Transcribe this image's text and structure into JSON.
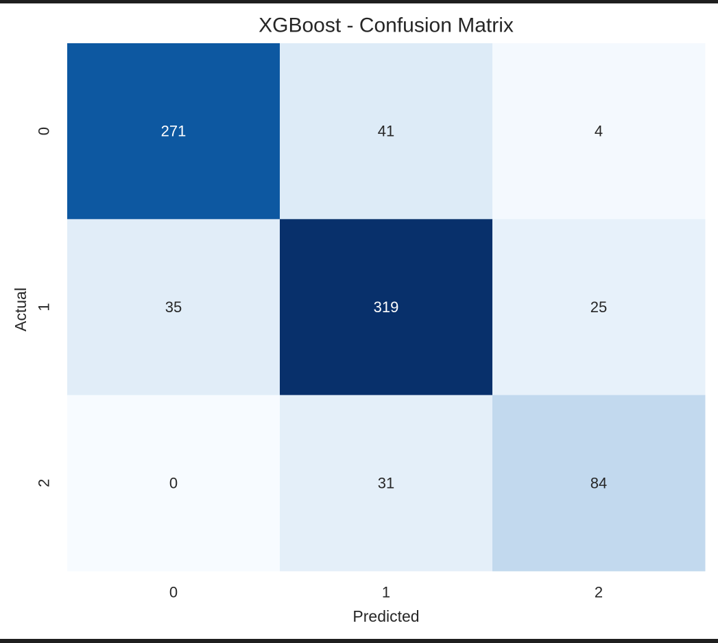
{
  "chart_data": {
    "type": "heatmap",
    "title": "XGBoost - Confusion Matrix",
    "xlabel": "Predicted",
    "ylabel": "Actual",
    "x_categories": [
      "0",
      "1",
      "2"
    ],
    "y_categories": [
      "0",
      "1",
      "2"
    ],
    "values": [
      [
        271,
        41,
        4
      ],
      [
        35,
        319,
        25
      ],
      [
        0,
        31,
        84
      ]
    ],
    "colormap": "Blues",
    "colorbar": false,
    "grid": false
  }
}
